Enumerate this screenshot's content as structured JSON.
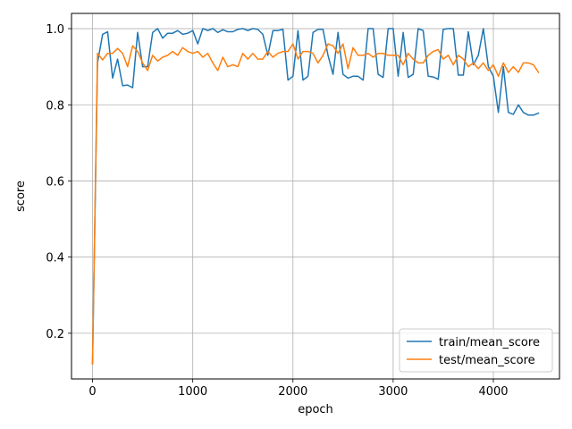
{
  "chart_data": {
    "type": "line",
    "xlabel": "epoch",
    "ylabel": "score",
    "xlim": [
      -210,
      4660
    ],
    "ylim": [
      0.08,
      1.04
    ],
    "xticks": [
      0,
      1000,
      2000,
      3000,
      4000
    ],
    "yticks": [
      0.2,
      0.4,
      0.6,
      0.8,
      1.0
    ],
    "xtick_labels": [
      "0",
      "1000",
      "2000",
      "3000",
      "4000"
    ],
    "ytick_labels": [
      "0.2",
      "0.4",
      "0.6",
      "0.8",
      "1.0"
    ],
    "grid": true,
    "legend_position": "lower-right",
    "series": [
      {
        "name": "train/mean_score",
        "color": "#1f77b4",
        "x": [
          0,
          50,
          100,
          150,
          200,
          250,
          300,
          350,
          400,
          450,
          500,
          550,
          600,
          650,
          700,
          750,
          800,
          850,
          900,
          950,
          1000,
          1050,
          1100,
          1150,
          1200,
          1250,
          1300,
          1350,
          1400,
          1450,
          1500,
          1550,
          1600,
          1650,
          1700,
          1750,
          1800,
          1850,
          1900,
          1950,
          2000,
          2050,
          2100,
          2150,
          2200,
          2250,
          2300,
          2350,
          2400,
          2450,
          2500,
          2550,
          2600,
          2650,
          2700,
          2750,
          2800,
          2850,
          2900,
          2950,
          3000,
          3050,
          3100,
          3150,
          3200,
          3250,
          3300,
          3350,
          3400,
          3450,
          3500,
          3550,
          3600,
          3650,
          3700,
          3750,
          3800,
          3850,
          3900,
          3950,
          4000,
          4050,
          4100,
          4150,
          4200,
          4250,
          4300,
          4350,
          4400,
          4450
        ],
        "y": [
          0.12,
          0.91,
          0.985,
          0.992,
          0.87,
          0.92,
          0.85,
          0.852,
          0.845,
          0.99,
          0.9,
          0.9,
          0.99,
          1.0,
          0.975,
          0.988,
          0.988,
          0.995,
          0.985,
          0.988,
          0.995,
          0.96,
          1.0,
          0.995,
          1.0,
          0.99,
          0.997,
          0.992,
          0.992,
          0.998,
          1.0,
          0.995,
          1.0,
          0.998,
          0.985,
          0.93,
          0.995,
          0.995,
          0.998,
          0.865,
          0.875,
          0.995,
          0.865,
          0.875,
          0.99,
          0.998,
          0.998,
          0.93,
          0.88,
          0.99,
          0.88,
          0.87,
          0.875,
          0.875,
          0.865,
          1.0,
          1.0,
          0.88,
          0.872,
          1.0,
          1.0,
          0.875,
          0.99,
          0.872,
          0.88,
          1.0,
          0.995,
          0.875,
          0.873,
          0.867,
          0.998,
          1.0,
          1.0,
          0.878,
          0.878,
          0.992,
          0.905,
          0.93,
          1.0,
          0.9,
          0.875,
          0.78,
          0.9,
          0.78,
          0.775,
          0.8,
          0.78,
          0.773,
          0.773,
          0.778
        ]
      },
      {
        "name": "test/mean_score",
        "color": "#ff7f0e",
        "x": [
          0,
          50,
          100,
          150,
          200,
          250,
          300,
          350,
          400,
          450,
          500,
          550,
          600,
          650,
          700,
          750,
          800,
          850,
          900,
          950,
          1000,
          1050,
          1100,
          1150,
          1200,
          1250,
          1300,
          1350,
          1400,
          1450,
          1500,
          1550,
          1600,
          1650,
          1700,
          1750,
          1800,
          1850,
          1900,
          1950,
          2000,
          2050,
          2100,
          2150,
          2200,
          2250,
          2300,
          2350,
          2400,
          2450,
          2500,
          2550,
          2600,
          2650,
          2700,
          2750,
          2800,
          2850,
          2900,
          2950,
          3000,
          3050,
          3100,
          3150,
          3200,
          3250,
          3300,
          3350,
          3400,
          3450,
          3500,
          3550,
          3600,
          3650,
          3700,
          3750,
          3800,
          3850,
          3900,
          3950,
          4000,
          4050,
          4100,
          4150,
          4200,
          4250,
          4300,
          4350,
          4400,
          4450
        ],
        "y": [
          0.12,
          0.935,
          0.918,
          0.935,
          0.935,
          0.948,
          0.935,
          0.9,
          0.955,
          0.94,
          0.91,
          0.89,
          0.93,
          0.915,
          0.925,
          0.93,
          0.94,
          0.93,
          0.95,
          0.94,
          0.935,
          0.94,
          0.925,
          0.935,
          0.91,
          0.89,
          0.925,
          0.9,
          0.905,
          0.9,
          0.935,
          0.92,
          0.935,
          0.92,
          0.92,
          0.94,
          0.925,
          0.935,
          0.94,
          0.94,
          0.96,
          0.92,
          0.94,
          0.94,
          0.935,
          0.91,
          0.93,
          0.96,
          0.955,
          0.935,
          0.96,
          0.895,
          0.95,
          0.93,
          0.93,
          0.935,
          0.925,
          0.935,
          0.935,
          0.93,
          0.93,
          0.93,
          0.905,
          0.935,
          0.92,
          0.91,
          0.91,
          0.93,
          0.94,
          0.945,
          0.92,
          0.93,
          0.905,
          0.93,
          0.92,
          0.9,
          0.91,
          0.895,
          0.91,
          0.89,
          0.905,
          0.875,
          0.91,
          0.885,
          0.9,
          0.885,
          0.91,
          0.91,
          0.905,
          0.885
        ]
      }
    ]
  }
}
